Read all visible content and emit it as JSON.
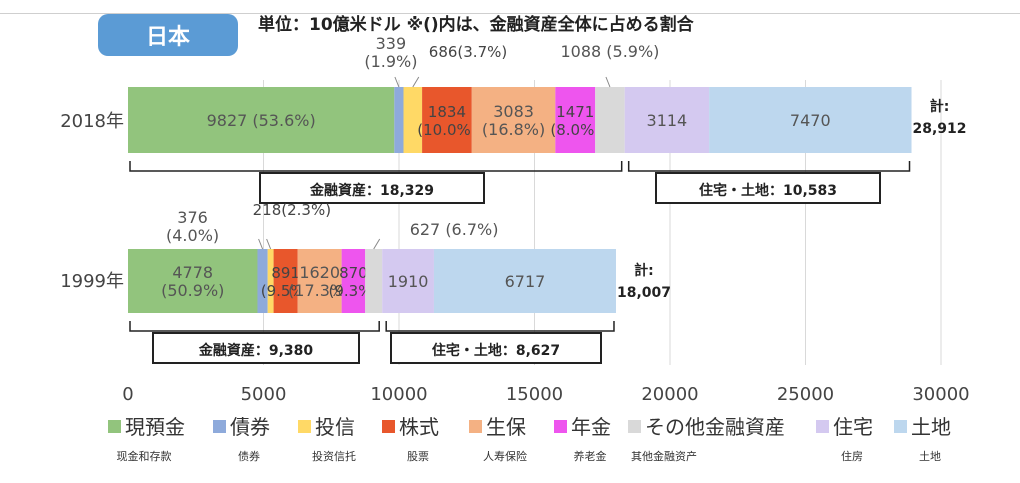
{
  "country_tab": "日本",
  "unit_note": "単位：10億米ドル ※()内は、金融資産全体に占める割合",
  "colors": {
    "cash": "#92c47d",
    "bond": "#8eaadb",
    "trust": "#ffd966",
    "stock": "#e8572c",
    "insurance": "#f4b183",
    "pension": "#ee55ee",
    "other": "#d9d9d9",
    "house": "#d4c9f0",
    "land": "#bdd7ee"
  },
  "chart_data": {
    "type": "bar",
    "orientation": "horizontal",
    "stacked": true,
    "xlim": [
      0,
      30000
    ],
    "xticks": [
      "0",
      "5000",
      "10000",
      "15000",
      "20000",
      "25000",
      "30000"
    ],
    "categories": [
      "2018年",
      "1999年"
    ],
    "series": [
      {
        "key": "cash",
        "name": "現預金",
        "sub": "现金和存款",
        "values": [
          9827,
          4778
        ],
        "labels": [
          "9827 (53.6%)",
          "4778\n(50.9%)"
        ]
      },
      {
        "key": "bond",
        "name": "債券",
        "sub": "债券",
        "values": [
          339,
          376
        ],
        "labels": [
          "339\n(1.9%)",
          "376\n(4.0%)"
        ]
      },
      {
        "key": "trust",
        "name": "投信",
        "sub": "投资信托",
        "values": [
          686,
          218
        ],
        "labels": [
          "686(3.7%)",
          "218(2.3%)"
        ]
      },
      {
        "key": "stock",
        "name": "株式",
        "sub": "股票",
        "values": [
          1834,
          891
        ],
        "labels": [
          "1834\n(10.0%)",
          "891\n(9.5%)"
        ]
      },
      {
        "key": "insurance",
        "name": "生保",
        "sub": "人寿保险",
        "values": [
          3083,
          1620
        ],
        "labels": [
          "3083\n(16.8%)",
          "1620\n(17.3%)"
        ]
      },
      {
        "key": "pension",
        "name": "年金",
        "sub": "养老金",
        "values": [
          1471,
          870
        ],
        "labels": [
          "1471\n(8.0%)",
          "870\n(9.3%)"
        ]
      },
      {
        "key": "other",
        "name": "その他金融資産",
        "sub": "其他金融资产",
        "values": [
          1088,
          627
        ],
        "labels": [
          "1088 (5.9%)",
          "627 (6.7%)"
        ]
      },
      {
        "key": "house",
        "name": "住宅",
        "sub": "住房",
        "values": [
          3114,
          1910
        ],
        "labels": [
          "3114",
          "1910"
        ]
      },
      {
        "key": "land",
        "name": "土地",
        "sub": "土地",
        "values": [
          7470,
          6717
        ],
        "labels": [
          "7470",
          "6717"
        ]
      }
    ],
    "totals": [
      "計:\n28,912",
      "計:\n18,007"
    ],
    "groups": [
      {
        "financial": "金融資産：18,329",
        "housing": "住宅・土地：10,583"
      },
      {
        "financial": "金融資産：9,380",
        "housing": "住宅・土地：8,627"
      }
    ]
  }
}
